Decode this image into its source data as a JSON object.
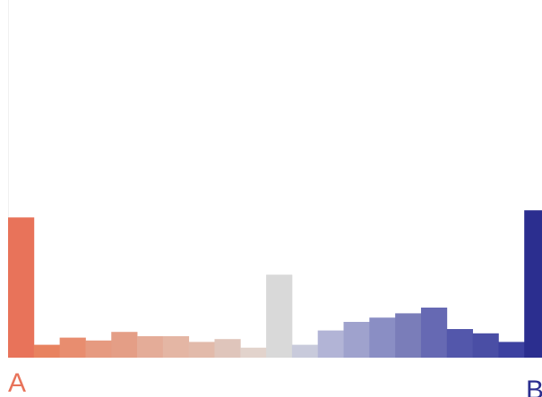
{
  "chart_data": {
    "type": "bar",
    "title": "",
    "xlabel": "",
    "ylabel": "",
    "grid": false,
    "legend": "none",
    "ylim": [
      0,
      100
    ],
    "axis_labels": {
      "left": "A",
      "right": "B"
    },
    "label_colors": {
      "left": "#e8735a",
      "right": "#2b2e8f"
    },
    "values": [
      98,
      9,
      14,
      12,
      18,
      15,
      15,
      11,
      13,
      7,
      58,
      9,
      19,
      25,
      28,
      31,
      35,
      20,
      17,
      11,
      103
    ],
    "colors": [
      "#e8735a",
      "#e8825f",
      "#e88d6f",
      "#e69a80",
      "#e49e86",
      "#e4ac98",
      "#e4b6a4",
      "#e2baaa",
      "#dfc5bb",
      "#e2d3cc",
      "#d9d9d9",
      "#c8cadb",
      "#b2b4d6",
      "#9fa2cd",
      "#8a8ec4",
      "#7a7db9",
      "#6669b3",
      "#5357ab",
      "#4a4ea5",
      "#3d41a0",
      "#2b2e8f"
    ]
  }
}
